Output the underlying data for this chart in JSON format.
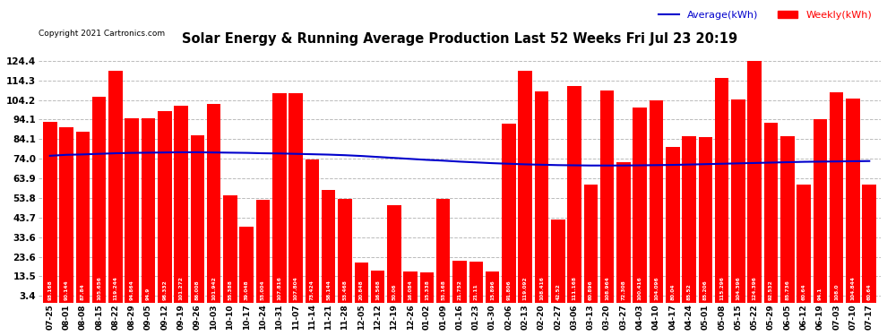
{
  "title": "Solar Energy & Running Average Production Last 52 Weeks Fri Jul 23 20:19",
  "copyright": "Copyright 2021 Cartronics.com",
  "legend_avg": "Average(kWh)",
  "legend_weekly": "Weekly(kWh)",
  "bar_color": "#ff0000",
  "avg_line_color": "#0000cc",
  "background_color": "#ffffff",
  "grid_color": "#bbbbbb",
  "yticks": [
    3.4,
    13.5,
    23.6,
    33.6,
    43.7,
    53.8,
    63.9,
    74.0,
    84.1,
    94.1,
    104.2,
    114.3,
    124.4
  ],
  "ylim": [
    0,
    131
  ],
  "categories": [
    "07-25",
    "08-01",
    "08-08",
    "08-15",
    "08-22",
    "08-29",
    "09-05",
    "09-12",
    "09-19",
    "09-26",
    "10-03",
    "10-10",
    "10-17",
    "10-24",
    "10-31",
    "11-07",
    "11-14",
    "11-21",
    "11-28",
    "12-05",
    "12-12",
    "12-19",
    "12-26",
    "01-02",
    "01-09",
    "01-16",
    "01-23",
    "01-30",
    "02-06",
    "02-13",
    "02-20",
    "02-27",
    "03-06",
    "03-13",
    "03-20",
    "03-27",
    "04-03",
    "04-10",
    "04-17",
    "04-24",
    "05-01",
    "05-08",
    "05-15",
    "05-22",
    "05-29",
    "06-05",
    "06-12",
    "06-19",
    "07-03",
    "07-10",
    "07-17"
  ],
  "weekly_values": [
    93.168,
    90.144,
    87.84,
    105.656,
    119.244,
    94.864,
    94.9,
    98.332,
    101.272,
    86.008,
    101.942,
    55.388,
    39.048,
    53.004,
    107.816,
    107.804,
    73.424,
    58.144,
    53.468,
    20.848,
    16.568,
    50.06,
    16.084,
    15.338,
    53.168,
    21.752,
    21.11,
    15.896,
    91.806,
    119.092,
    108.416,
    42.52,
    111.168,
    60.896,
    108.964,
    72.308,
    100.416,
    104.096,
    80.04,
    85.52,
    85.206,
    115.296,
    104.396,
    124.396,
    92.532,
    85.736,
    60.64,
    94.1,
    108.0,
    104.844,
    60.64
  ],
  "avg_values": [
    75.5,
    76.0,
    76.2,
    76.5,
    76.8,
    77.0,
    77.1,
    77.2,
    77.3,
    77.3,
    77.2,
    77.1,
    77.0,
    76.8,
    76.7,
    76.5,
    76.3,
    76.1,
    75.8,
    75.4,
    74.9,
    74.4,
    73.9,
    73.4,
    73.0,
    72.5,
    72.1,
    71.7,
    71.4,
    71.1,
    70.9,
    70.7,
    70.6,
    70.5,
    70.5,
    70.5,
    70.6,
    70.7,
    70.8,
    71.0,
    71.2,
    71.4,
    71.6,
    71.8,
    72.0,
    72.2,
    72.4,
    72.5,
    72.6,
    72.7,
    72.8
  ]
}
